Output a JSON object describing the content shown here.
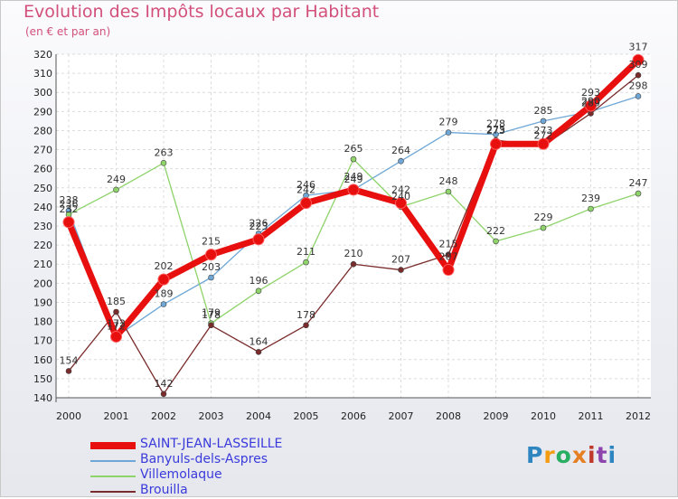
{
  "title": "Evolution des Impôts locaux par Habitant",
  "subtitle": "(en € et par an)",
  "logo": {
    "text": "Proxiti",
    "colors": [
      "#2e86c1",
      "#f39c12",
      "#27ae60",
      "#e67e22",
      "#c0392b",
      "#8e44ad",
      "#2e86c1"
    ]
  },
  "chart_data": {
    "type": "line",
    "title": "Evolution des Impôts locaux par Habitant",
    "subtitle": "(en € et par an)",
    "xlabel": "",
    "ylabel": "",
    "x": [
      "2000",
      "2001",
      "2002",
      "2003",
      "2004",
      "2005",
      "2006",
      "2007",
      "2008",
      "2009",
      "2010",
      "2011",
      "2012"
    ],
    "ylim": [
      140,
      320
    ],
    "yticks": [
      140,
      150,
      160,
      170,
      180,
      190,
      200,
      210,
      220,
      230,
      240,
      250,
      260,
      270,
      280,
      290,
      300,
      310,
      320
    ],
    "grid": true,
    "legend_position": "bottom-left",
    "series": [
      {
        "name": "SAINT-JEAN-LASSEILLE",
        "color": "#e8100f",
        "values": [
          232,
          172,
          202,
          215,
          223,
          242,
          249,
          242,
          207,
          273,
          273,
          293,
          317
        ]
      },
      {
        "name": "Banyuls-dels-Aspres",
        "color": "#6ea7d6",
        "values": [
          238,
          172,
          189,
          203,
          226,
          246,
          249,
          264,
          279,
          278,
          285,
          290,
          298
        ]
      },
      {
        "name": "Villemolaque",
        "color": "#8fd36b",
        "values": [
          236,
          249,
          263,
          179,
          196,
          211,
          265,
          240,
          248,
          222,
          229,
          239,
          247
        ]
      },
      {
        "name": "Brouilla",
        "color": "#7a2b2b",
        "values": [
          154,
          185,
          142,
          178,
          164,
          178,
          210,
          207,
          215,
          275,
          272,
          289,
          309
        ]
      }
    ]
  }
}
